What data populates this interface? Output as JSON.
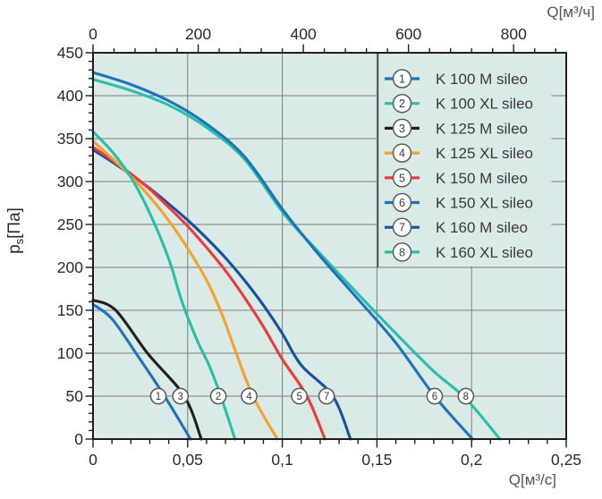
{
  "chart_data": {
    "type": "line",
    "title": "",
    "plot": {
      "bg_color": "#d9eae7",
      "grid_color": "#7d7d7d",
      "border_color": "#1d1d1b",
      "grid": true,
      "legend_position": "top-right"
    },
    "x_axis_bottom": {
      "label": "Q[м³/с]",
      "range": [
        0,
        0.25
      ],
      "major_ticks": [
        {
          "v": 0,
          "t": "0"
        },
        {
          "v": 0.05,
          "t": "0,05"
        },
        {
          "v": 0.1,
          "t": "0,1"
        },
        {
          "v": 0.15,
          "t": "0,15"
        },
        {
          "v": 0.2,
          "t": "0,2"
        },
        {
          "v": 0.25,
          "t": "0,25"
        }
      ],
      "minor_step": 0.01,
      "grid_step": 0.05
    },
    "x_axis_top": {
      "label": "Q[м³/ч]",
      "unit_per_bottom": 3600,
      "range": [
        0,
        900
      ],
      "major_ticks": [
        {
          "v": 0,
          "t": "0"
        },
        {
          "v": 200,
          "t": "200"
        },
        {
          "v": 400,
          "t": "400"
        },
        {
          "v": 600,
          "t": "600"
        },
        {
          "v": 800,
          "t": "800"
        }
      ],
      "minor_step": 40
    },
    "y_axis": {
      "label_base": "p",
      "label_sub": "s",
      "label_unit": "[Па]",
      "range": [
        0,
        450
      ],
      "major_ticks": [
        {
          "v": 0,
          "t": "0"
        },
        {
          "v": 50,
          "t": "50"
        },
        {
          "v": 100,
          "t": "100"
        },
        {
          "v": 150,
          "t": "150"
        },
        {
          "v": 200,
          "t": "200"
        },
        {
          "v": 250,
          "t": "250"
        },
        {
          "v": 300,
          "t": "300"
        },
        {
          "v": 350,
          "t": "350"
        },
        {
          "v": 400,
          "t": "400"
        },
        {
          "v": 450,
          "t": "450"
        }
      ],
      "minor_step": 10,
      "grid_step": 50
    },
    "marker_pressure": 50,
    "draw_order": [
      7,
      5,
      4,
      2,
      8,
      6,
      3,
      1
    ],
    "series": [
      {
        "number": 1,
        "name": "K 100 M sileo",
        "color": "#1e73bb",
        "marker_q": 0.0345,
        "points": [
          [
            0,
            157
          ],
          [
            0.01,
            140
          ],
          [
            0.0227,
            100
          ],
          [
            0.0378,
            50
          ],
          [
            0.0515,
            0
          ]
        ]
      },
      {
        "number": 2,
        "name": "K 100 XL sileo",
        "color": "#29bfa9",
        "marker_q": 0.0662,
        "points": [
          [
            0,
            358
          ],
          [
            0.01,
            335
          ],
          [
            0.02,
            305
          ],
          [
            0.03,
            263
          ],
          [
            0.04,
            210
          ],
          [
            0.047,
            160
          ],
          [
            0.055,
            115
          ],
          [
            0.0615,
            85
          ],
          [
            0.0675,
            50
          ],
          [
            0.075,
            0
          ]
        ]
      },
      {
        "number": 3,
        "name": "K 125 M sileo",
        "color": "#221f1f",
        "marker_q": 0.0462,
        "points": [
          [
            0,
            162
          ],
          [
            0.012,
            150
          ],
          [
            0.0288,
            100
          ],
          [
            0.0482,
            50
          ],
          [
            0.0572,
            0
          ]
        ]
      },
      {
        "number": 4,
        "name": "K 125 XL sileo",
        "color": "#f6a02d",
        "marker_q": 0.0825,
        "points": [
          [
            0,
            347
          ],
          [
            0.012,
            323
          ],
          [
            0.024,
            297
          ],
          [
            0.036,
            266
          ],
          [
            0.048,
            229
          ],
          [
            0.06,
            185
          ],
          [
            0.068,
            146
          ],
          [
            0.0752,
            103
          ],
          [
            0.0845,
            50
          ],
          [
            0.0974,
            0
          ]
        ]
      },
      {
        "number": 5,
        "name": "K 150 M sileo",
        "color": "#ee3a3a",
        "marker_q": 0.109,
        "points": [
          [
            0,
            340
          ],
          [
            0.01,
            325
          ],
          [
            0.02,
            309
          ],
          [
            0.03,
            291
          ],
          [
            0.04,
            270
          ],
          [
            0.05,
            248
          ],
          [
            0.06,
            223
          ],
          [
            0.07,
            196
          ],
          [
            0.08,
            165
          ],
          [
            0.09,
            131
          ],
          [
            0.1,
            93
          ],
          [
            0.113,
            50
          ],
          [
            0.1225,
            0
          ]
        ]
      },
      {
        "number": 6,
        "name": "K 150 XL sileo",
        "color": "#1e73bb",
        "marker_q": 0.1805,
        "points": [
          [
            0,
            427
          ],
          [
            0.02,
            413
          ],
          [
            0.04,
            394
          ],
          [
            0.06,
            367
          ],
          [
            0.08,
            329
          ],
          [
            0.101,
            265
          ],
          [
            0.12,
            213
          ],
          [
            0.14,
            163
          ],
          [
            0.16,
            112
          ],
          [
            0.1805,
            50
          ],
          [
            0.2005,
            0
          ]
        ]
      },
      {
        "number": 7,
        "name": "K 160 M sileo",
        "color": "#17519e",
        "marker_q": 0.1234,
        "points": [
          [
            0,
            337
          ],
          [
            0.01,
            323
          ],
          [
            0.02,
            308
          ],
          [
            0.03,
            292
          ],
          [
            0.04,
            274
          ],
          [
            0.05,
            255
          ],
          [
            0.06,
            234
          ],
          [
            0.07,
            211
          ],
          [
            0.08,
            185
          ],
          [
            0.09,
            156
          ],
          [
            0.1,
            123
          ],
          [
            0.11,
            86
          ],
          [
            0.1267,
            50
          ],
          [
            0.136,
            0
          ]
        ]
      },
      {
        "number": 8,
        "name": "K 160 XL sileo",
        "color": "#29bfa9",
        "marker_q": 0.197,
        "points": [
          [
            0,
            419
          ],
          [
            0.02,
            406
          ],
          [
            0.04,
            389
          ],
          [
            0.06,
            363
          ],
          [
            0.08,
            326
          ],
          [
            0.101,
            262
          ],
          [
            0.12,
            216
          ],
          [
            0.14,
            169
          ],
          [
            0.16,
            123
          ],
          [
            0.18,
            79
          ],
          [
            0.197,
            47
          ],
          [
            0.215,
            0
          ]
        ]
      }
    ],
    "legend": {
      "border_color": "#3f3f3f"
    }
  }
}
